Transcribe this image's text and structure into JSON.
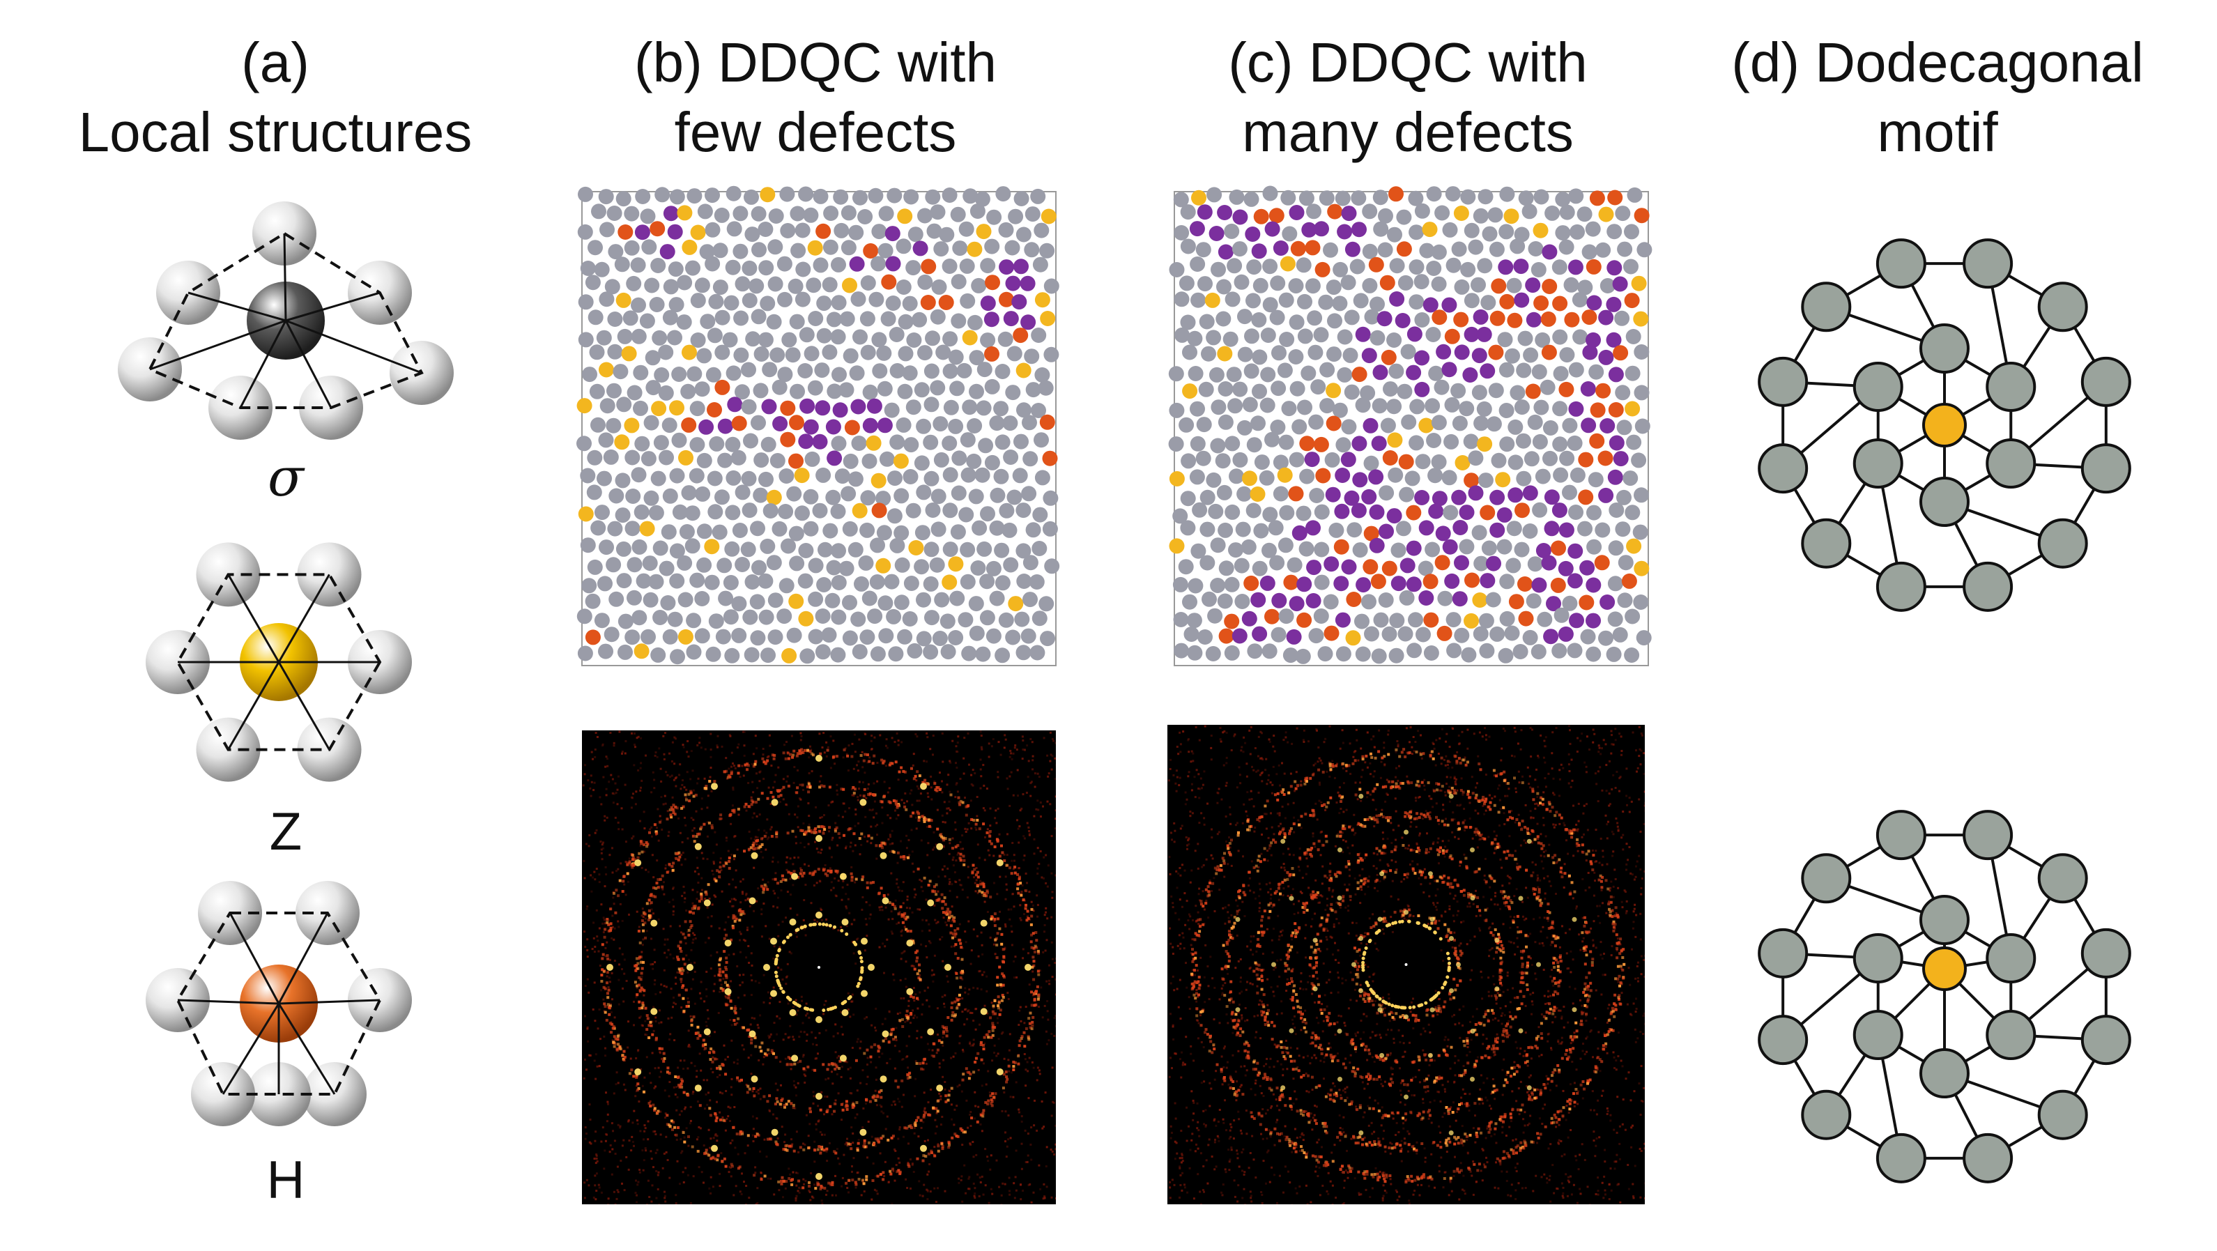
{
  "columns": {
    "a": {
      "line1": "(a)",
      "line2": "Local structures"
    },
    "b": {
      "line1": "(b) DDQC with",
      "line2": "few defects"
    },
    "c": {
      "line1": "(c) DDQC with",
      "line2": "many defects"
    },
    "d": {
      "line1": "(d) Dodecagonal",
      "line2": "motif"
    }
  },
  "local_structures": [
    {
      "label": "σ",
      "center_color": "#5a5a5a",
      "icon": "sigma-motif"
    },
    {
      "label": "Z",
      "center_color": "#f2c200",
      "icon": "z-motif"
    },
    {
      "label": "H",
      "center_color": "#e8732a",
      "icon": "h-motif"
    }
  ],
  "colors": {
    "gray_particle": "#9a9ca8",
    "z_particle": "#f3b61f",
    "h_particle": "#e15319",
    "sigma_particle": "#7b2f9e",
    "motif_node": "#9aa39c",
    "motif_center": "#f3b21c",
    "fft_background": "#000000",
    "fft_peak": "#ffe070",
    "fft_noise": "#8b1a0a"
  },
  "packings": {
    "few_defects": {
      "sigma_fraction": 0.08,
      "h_fraction": 0.03,
      "z_fraction": 0.07
    },
    "many_defects": {
      "sigma_fraction": 0.2,
      "h_fraction": 0.1,
      "z_fraction": 0.05
    }
  }
}
